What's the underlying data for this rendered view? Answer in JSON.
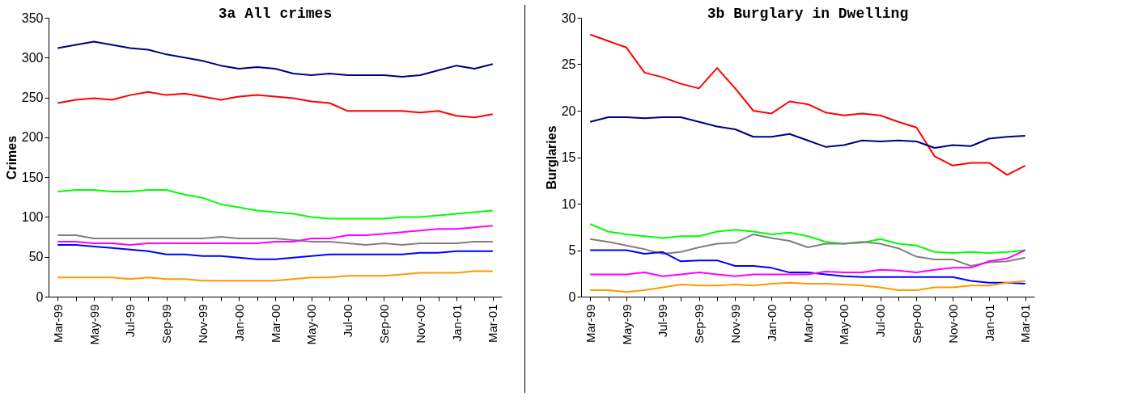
{
  "chart_data": [
    {
      "type": "line",
      "title": "3a All crimes",
      "ylabel": "Crimes",
      "categories": [
        "Mar-99",
        null,
        "May-99",
        null,
        "Jul-99",
        null,
        "Sep-99",
        null,
        "Nov-99",
        null,
        "Jan-00",
        null,
        "Mar-00",
        null,
        "May-00",
        null,
        "Jul-00",
        null,
        "Sep-00",
        null,
        "Nov-00",
        null,
        "Jan-01",
        null,
        "Mar-01"
      ],
      "ylim": [
        0,
        350
      ],
      "yticks": [
        0,
        50,
        100,
        150,
        200,
        250,
        300,
        350
      ],
      "series": [
        {
          "color": "#000080",
          "values": [
            312,
            316,
            320,
            316,
            312,
            310,
            304,
            300,
            296,
            290,
            286,
            288,
            286,
            280,
            278,
            280,
            278,
            278,
            278,
            276,
            278,
            284,
            290,
            286,
            292
          ]
        },
        {
          "color": "#ff0000",
          "values": [
            243,
            247,
            249,
            247,
            253,
            257,
            253,
            255,
            251,
            247,
            251,
            253,
            251,
            249,
            245,
            243,
            233,
            233,
            233,
            233,
            231,
            233,
            227,
            225,
            229
          ]
        },
        {
          "color": "#00ff00",
          "values": [
            132,
            134,
            134,
            132,
            132,
            134,
            134,
            128,
            124,
            116,
            112,
            108,
            106,
            104,
            100,
            98,
            98,
            98,
            98,
            100,
            100,
            102,
            104,
            106,
            108
          ]
        },
        {
          "color": "#808080",
          "values": [
            77,
            77,
            73,
            73,
            73,
            73,
            73,
            73,
            73,
            75,
            73,
            73,
            73,
            71,
            69,
            69,
            67,
            65,
            67,
            65,
            67,
            67,
            67,
            69,
            69
          ]
        },
        {
          "color": "#ff00ff",
          "values": [
            69,
            69,
            67,
            67,
            65,
            67,
            67,
            67,
            67,
            67,
            67,
            67,
            69,
            69,
            73,
            73,
            77,
            77,
            79,
            81,
            83,
            85,
            85,
            87,
            89
          ]
        },
        {
          "color": "#0000ff",
          "values": [
            65,
            65,
            63,
            61,
            59,
            57,
            53,
            53,
            51,
            51,
            49,
            47,
            47,
            49,
            51,
            53,
            53,
            53,
            53,
            53,
            55,
            55,
            57,
            57,
            57
          ]
        },
        {
          "color": "#ff9900",
          "values": [
            24,
            24,
            24,
            24,
            22,
            24,
            22,
            22,
            20,
            20,
            20,
            20,
            20,
            22,
            24,
            24,
            26,
            26,
            26,
            28,
            30,
            30,
            30,
            32,
            32
          ]
        }
      ]
    },
    {
      "type": "line",
      "title": "3b Burglary in Dwelling",
      "ylabel": "Burglaries",
      "categories": [
        "Mar-99",
        null,
        "May-99",
        null,
        "Jul-99",
        null,
        "Sep-99",
        null,
        "Nov-99",
        null,
        "Jan-00",
        null,
        "Mar-00",
        null,
        "May-00",
        null,
        "Jul-00",
        null,
        "Sep-00",
        null,
        "Nov-00",
        null,
        "Jan-01",
        null,
        "Mar-01"
      ],
      "ylim": [
        0,
        30
      ],
      "yticks": [
        0,
        5,
        10,
        15,
        20,
        25,
        30
      ],
      "series": [
        {
          "color": "#ff0000",
          "values": [
            28.2,
            27.5,
            26.8,
            24.1,
            23.6,
            22.9,
            22.4,
            24.6,
            22.4,
            20.0,
            19.7,
            21.0,
            20.7,
            19.8,
            19.5,
            19.7,
            19.5,
            18.8,
            18.2,
            15.1,
            14.1,
            14.4,
            14.4,
            13.1,
            14.1
          ]
        },
        {
          "color": "#000080",
          "values": [
            18.8,
            19.3,
            19.3,
            19.2,
            19.3,
            19.3,
            18.8,
            18.3,
            18.0,
            17.2,
            17.2,
            17.5,
            16.8,
            16.1,
            16.3,
            16.8,
            16.7,
            16.8,
            16.7,
            16.0,
            16.3,
            16.2,
            17.0,
            17.2,
            17.3
          ]
        },
        {
          "color": "#00ff00",
          "values": [
            7.8,
            7.0,
            6.7,
            6.5,
            6.3,
            6.5,
            6.5,
            7.0,
            7.2,
            7.0,
            6.7,
            6.9,
            6.5,
            5.9,
            5.7,
            5.8,
            6.2,
            5.7,
            5.5,
            4.8,
            4.7,
            4.8,
            4.7,
            4.8,
            5.0
          ]
        },
        {
          "color": "#808080",
          "values": [
            6.2,
            5.9,
            5.5,
            5.1,
            4.6,
            4.8,
            5.3,
            5.7,
            5.8,
            6.7,
            6.3,
            6.0,
            5.3,
            5.7,
            5.7,
            5.9,
            5.7,
            5.2,
            4.3,
            4.0,
            4.0,
            3.3,
            3.7,
            3.8,
            4.2
          ]
        },
        {
          "color": "#0000ff",
          "values": [
            5.0,
            5.0,
            5.0,
            4.6,
            4.8,
            3.8,
            3.9,
            3.9,
            3.3,
            3.3,
            3.1,
            2.6,
            2.6,
            2.4,
            2.2,
            2.1,
            2.1,
            2.1,
            2.1,
            2.1,
            2.1,
            1.7,
            1.5,
            1.5,
            1.4
          ]
        },
        {
          "color": "#ff00ff",
          "values": [
            2.4,
            2.4,
            2.4,
            2.6,
            2.2,
            2.4,
            2.6,
            2.4,
            2.2,
            2.4,
            2.4,
            2.4,
            2.4,
            2.7,
            2.6,
            2.6,
            2.9,
            2.8,
            2.6,
            2.9,
            3.1,
            3.1,
            3.8,
            4.1,
            5.0
          ]
        },
        {
          "color": "#ff9900",
          "values": [
            0.7,
            0.7,
            0.5,
            0.7,
            1.0,
            1.3,
            1.2,
            1.2,
            1.3,
            1.2,
            1.4,
            1.5,
            1.4,
            1.4,
            1.3,
            1.2,
            1.0,
            0.7,
            0.7,
            1.0,
            1.0,
            1.2,
            1.2,
            1.5,
            1.7
          ]
        }
      ]
    }
  ]
}
